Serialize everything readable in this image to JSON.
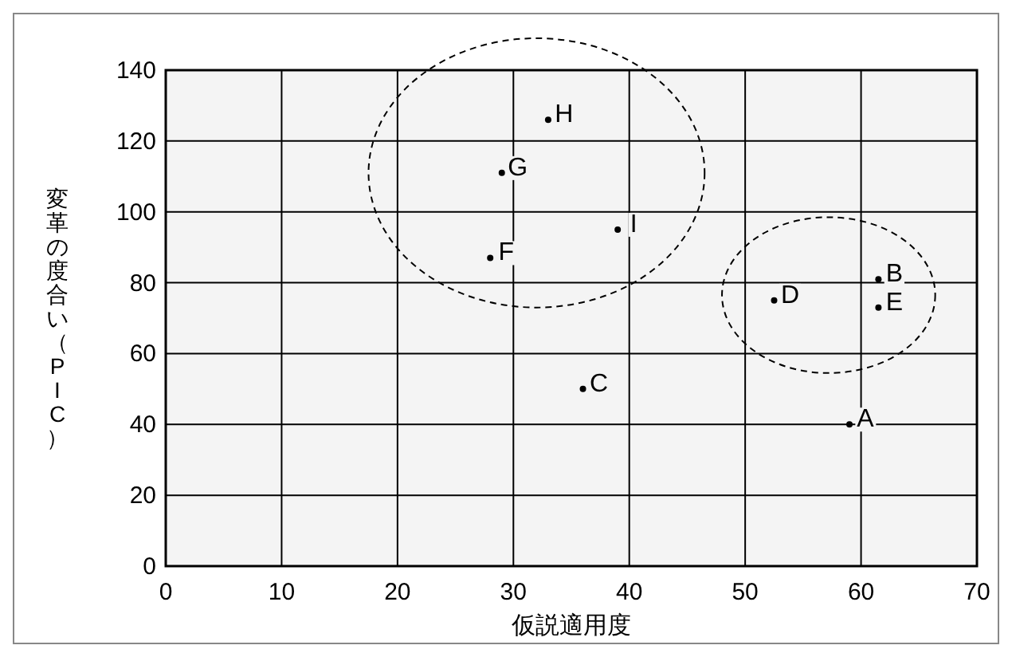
{
  "chart_data": {
    "type": "scatter",
    "xlabel": "仮説適用度",
    "ylabel": "変革の度合い（PIC）",
    "xlim": [
      0,
      70
    ],
    "ylim": [
      0,
      140
    ],
    "xticks": [
      0,
      10,
      20,
      30,
      40,
      50,
      60,
      70
    ],
    "yticks": [
      0,
      20,
      40,
      60,
      80,
      100,
      120,
      140
    ],
    "grid": true,
    "marker": "circle",
    "series": [
      {
        "name": "A",
        "color": "#000000",
        "x": [
          59
        ],
        "values": [
          40
        ]
      },
      {
        "name": "B",
        "color": "#000000",
        "x": [
          61.5
        ],
        "values": [
          81
        ]
      },
      {
        "name": "C",
        "color": "#000000",
        "x": [
          36
        ],
        "values": [
          50
        ]
      },
      {
        "name": "D",
        "color": "#000000",
        "x": [
          52.5
        ],
        "values": [
          75
        ]
      },
      {
        "name": "E",
        "color": "#000000",
        "x": [
          61.5
        ],
        "values": [
          73
        ]
      },
      {
        "name": "F",
        "color": "#000000",
        "x": [
          28
        ],
        "values": [
          87
        ]
      },
      {
        "name": "G",
        "color": "#000000",
        "x": [
          29
        ],
        "values": [
          111
        ]
      },
      {
        "name": "H",
        "color": "#000000",
        "x": [
          33
        ],
        "values": [
          126
        ]
      },
      {
        "name": "I",
        "color": "#000000",
        "x": [
          39
        ],
        "values": [
          95
        ]
      }
    ]
  }
}
